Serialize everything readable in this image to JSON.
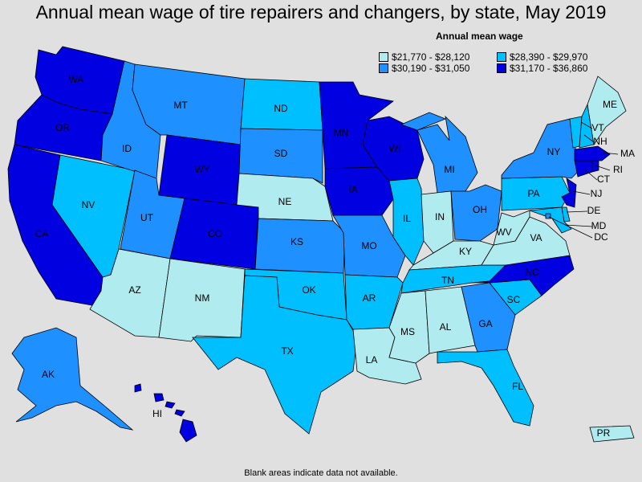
{
  "title": "Annual mean wage of tire repairers and changers, by state, May 2019",
  "legend": {
    "title": "Annual mean wage",
    "bins": [
      {
        "label": "$21,770 - $28,120",
        "color": "#b0ebef"
      },
      {
        "label": "$28,390 - $29,970",
        "color": "#00bfff"
      },
      {
        "label": "$30,190 - $31,050",
        "color": "#1e90ff"
      },
      {
        "label": "$31,170 - $36,860",
        "color": "#0000e0"
      }
    ]
  },
  "footnote": "Blank areas indicate data not available.",
  "states": {
    "WA": 3,
    "OR": 3,
    "CA": 3,
    "ID": 2,
    "NV": 1,
    "MT": 2,
    "WY": 3,
    "UT": 2,
    "AZ": 0,
    "CO": 3,
    "NM": 0,
    "ND": 1,
    "SD": 2,
    "NE": 0,
    "KS": 2,
    "OK": 1,
    "TX": 1,
    "MN": 3,
    "IA": 3,
    "MO": 2,
    "AR": 1,
    "LA": 0,
    "WI": 3,
    "IL": 1,
    "MI": 2,
    "IN": 0,
    "OH": 2,
    "KY": 0,
    "TN": 1,
    "MS": 0,
    "AL": 0,
    "GA": 2,
    "FL": 1,
    "SC": 1,
    "NC": 3,
    "VA": 0,
    "WV": 0,
    "PA": 1,
    "NY": 2,
    "VT": 1,
    "NH": 1,
    "ME": 0,
    "MA": 3,
    "RI": 3,
    "CT": 3,
    "NJ": 3,
    "DE": 1,
    "MD": 1,
    "DC": 2,
    "AK": 2,
    "HI": 3,
    "PR": 0
  }
}
